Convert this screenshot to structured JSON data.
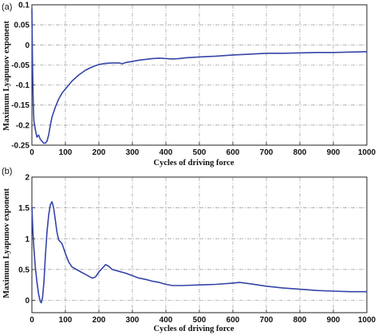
{
  "chart_data": [
    {
      "panel": "(a)",
      "type": "line",
      "xlabel": "Cycles of driving force",
      "ylabel": "Maximum Lyapunov exponent",
      "xlim": [
        0,
        1000
      ],
      "ylim": [
        -0.25,
        0.1
      ],
      "xticks": [
        "0",
        "100",
        "200",
        "300",
        "400",
        "500",
        "600",
        "700",
        "800",
        "900",
        "1000"
      ],
      "yticks": [
        "0.1",
        "0.05",
        "0",
        "-0.05",
        "-0.1",
        "-0.15",
        "-0.2",
        "-0.25"
      ],
      "grid": true,
      "series": [
        {
          "color": "#3444a8",
          "x": [
            0,
            2,
            4,
            6,
            8,
            10,
            15,
            20,
            25,
            30,
            35,
            40,
            45,
            50,
            55,
            60,
            70,
            80,
            90,
            100,
            120,
            140,
            160,
            180,
            200,
            220,
            240,
            260,
            270,
            280,
            300,
            320,
            340,
            360,
            380,
            400,
            420,
            440,
            460,
            480,
            500,
            550,
            600,
            650,
            700,
            750,
            800,
            850,
            900,
            950,
            1000
          ],
          "y": [
            0.09,
            -0.05,
            -0.15,
            -0.19,
            -0.2,
            -0.21,
            -0.23,
            -0.225,
            -0.235,
            -0.24,
            -0.245,
            -0.245,
            -0.24,
            -0.225,
            -0.2,
            -0.18,
            -0.155,
            -0.135,
            -0.12,
            -0.11,
            -0.09,
            -0.075,
            -0.063,
            -0.055,
            -0.049,
            -0.046,
            -0.045,
            -0.045,
            -0.047,
            -0.044,
            -0.041,
            -0.038,
            -0.036,
            -0.034,
            -0.033,
            -0.034,
            -0.035,
            -0.034,
            -0.032,
            -0.031,
            -0.03,
            -0.028,
            -0.025,
            -0.023,
            -0.021,
            -0.021,
            -0.02,
            -0.019,
            -0.019,
            -0.018,
            -0.017
          ]
        }
      ]
    },
    {
      "panel": "(b)",
      "type": "line",
      "xlabel": "Cycles of driving force",
      "ylabel": "Maximum Lyapunov exponent",
      "xlim": [
        0,
        1000
      ],
      "ylim": [
        -0.2,
        2
      ],
      "xticks": [
        "0",
        "100",
        "200",
        "300",
        "400",
        "500",
        "600",
        "700",
        "800",
        "900",
        "1000"
      ],
      "yticks": [
        "2",
        "1.5",
        "1",
        "0.5",
        "0"
      ],
      "grid": true,
      "series": [
        {
          "color": "#3444a8",
          "x": [
            0,
            3,
            6,
            10,
            15,
            20,
            25,
            28,
            32,
            36,
            40,
            45,
            50,
            55,
            60,
            65,
            70,
            75,
            80,
            90,
            100,
            110,
            120,
            140,
            160,
            180,
            190,
            200,
            210,
            220,
            230,
            240,
            260,
            280,
            300,
            320,
            340,
            360,
            380,
            400,
            420,
            450,
            500,
            550,
            600,
            620,
            650,
            700,
            750,
            800,
            850,
            900,
            950,
            1000
          ],
          "y": [
            1.52,
            1.1,
            0.85,
            0.55,
            0.3,
            0.1,
            -0.02,
            -0.04,
            0.05,
            0.3,
            0.7,
            1.1,
            1.38,
            1.55,
            1.6,
            1.5,
            1.3,
            1.1,
            0.98,
            0.92,
            0.76,
            0.62,
            0.54,
            0.48,
            0.42,
            0.36,
            0.38,
            0.46,
            0.52,
            0.58,
            0.55,
            0.5,
            0.47,
            0.44,
            0.4,
            0.36,
            0.34,
            0.31,
            0.29,
            0.26,
            0.24,
            0.24,
            0.25,
            0.26,
            0.28,
            0.29,
            0.27,
            0.23,
            0.2,
            0.18,
            0.16,
            0.15,
            0.14,
            0.14
          ]
        }
      ]
    }
  ]
}
